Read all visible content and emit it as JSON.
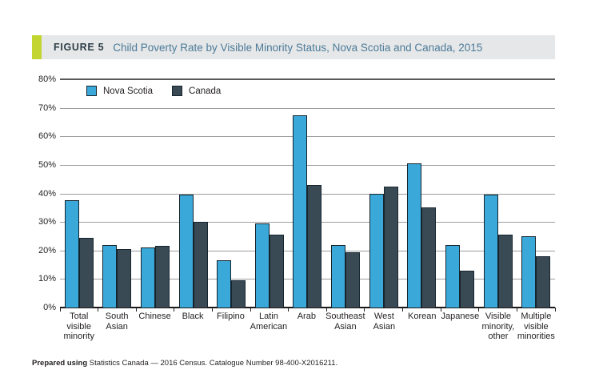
{
  "header": {
    "figure_label": "FIGURE 5",
    "title": "Child Poverty Rate by Visible Minority Status, Nova Scotia and Canada, 2015"
  },
  "footer": {
    "prefix": "Prepared using",
    "text": " Statistics Canada — 2016 Census. Catalogue Number 98-400-X2016211."
  },
  "colors": {
    "nova_scotia": "#3AA8D8",
    "canada": "#3A4A54",
    "accent_green": "#C2D530",
    "header_bg": "#E5E7E8",
    "title_text": "#4D7B99",
    "gridline": "#9B9DA0",
    "axis_text": "#231F20"
  },
  "chart_data": {
    "type": "bar",
    "title": "Child Poverty Rate by Visible Minority Status, Nova Scotia and Canada, 2015",
    "categories": [
      "Total visible minority",
      "South Asian",
      "Chinese",
      "Black",
      "Filipino",
      "Latin American",
      "Arab",
      "Southeast Asian",
      "West Asian",
      "Korean",
      "Japanese",
      "Visible minority, other",
      "Multiple visible minorities"
    ],
    "tick_label_lines": [
      [
        "Total visible",
        "minority"
      ],
      [
        "South",
        "Asian"
      ],
      [
        "Chinese"
      ],
      [
        "Black"
      ],
      [
        "Filipino"
      ],
      [
        "Latin",
        "American"
      ],
      [
        "Arab"
      ],
      [
        "Southeast",
        "Asian"
      ],
      [
        "West",
        "Asian"
      ],
      [
        "Korean"
      ],
      [
        "Japanese"
      ],
      [
        "Visible",
        "minority,",
        "other"
      ],
      [
        "Multiple",
        "visible",
        "minorities"
      ]
    ],
    "series": [
      {
        "name": "Nova Scotia",
        "color": "#3AA8D8",
        "values": [
          37.5,
          22,
          21,
          39.5,
          16.5,
          29.5,
          67.5,
          22,
          40,
          50.5,
          22,
          39.5,
          25
        ]
      },
      {
        "name": "Canada",
        "color": "#3A4A54",
        "values": [
          24.5,
          20.5,
          21.5,
          30,
          9.5,
          25.5,
          43,
          19.5,
          42.5,
          35,
          13,
          25.5,
          18
        ]
      }
    ],
    "xlabel": "",
    "ylabel": "",
    "ylim": [
      0,
      80
    ],
    "yticks": [
      "0%",
      "10%",
      "20%",
      "30%",
      "40%",
      "50%",
      "60%",
      "70%",
      "80%"
    ],
    "grid": true,
    "legend_position": "top-left-inside"
  }
}
